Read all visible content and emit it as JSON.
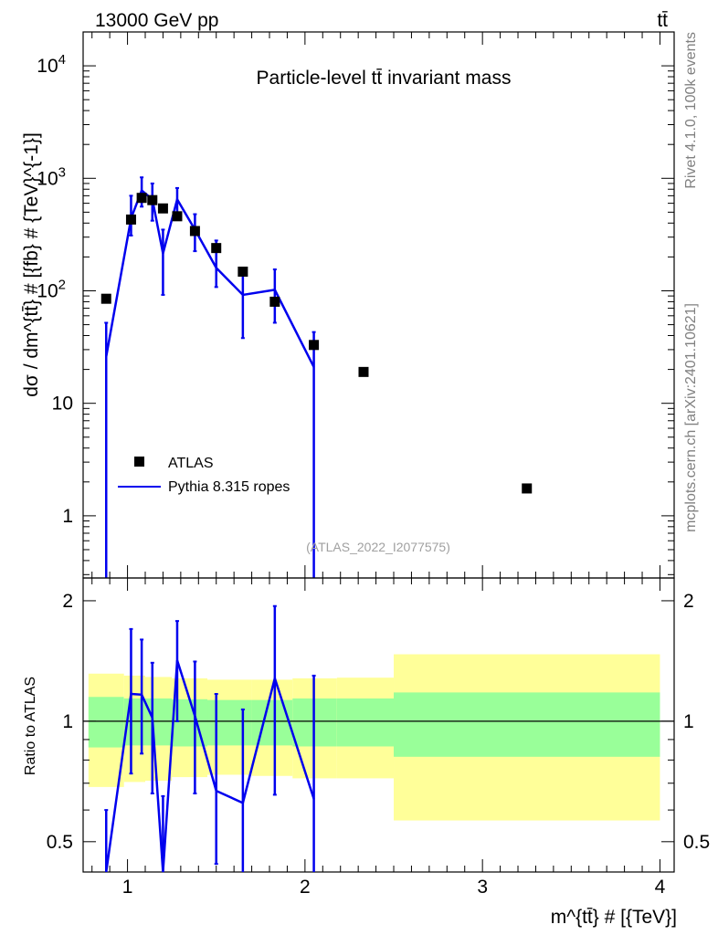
{
  "header": {
    "energy_label": "13000 GeV pp",
    "process_label": "tt̄"
  },
  "side_text": {
    "rivet": "Rivet 4.1.0,  100k events",
    "mcplots": "mcplots.cern.ch [arXiv:2401.10621]"
  },
  "chart_data": [
    {
      "type": "scatter",
      "panel": "main",
      "title": "Particle-level tt̄ invariant mass",
      "analysis_id": "(ATLAS_2022_I2077575)",
      "xlabel": "m^{tt̄} # [{TeV}]",
      "ylabel": "dσ / dm^{tt̄} # [{fb} # {TeV}^{-1}]",
      "yscale": "log",
      "xlim": [
        0.75,
        4.08
      ],
      "ylim": [
        0.28,
        20000
      ],
      "ytick_labels": [
        {
          "v": 1,
          "t": "1"
        },
        {
          "v": 10,
          "t": "10"
        },
        {
          "v": 100,
          "t": "10",
          "sup": "2"
        },
        {
          "v": 1000,
          "t": "10",
          "sup": "3"
        },
        {
          "v": 10000,
          "t": "10",
          "sup": "4"
        }
      ],
      "legend": [
        {
          "label": "ATLAS",
          "marker": "square",
          "color": "#000000"
        },
        {
          "label": "Pythia 8.315 ropes",
          "marker": "line",
          "color": "#0000ee"
        }
      ],
      "series": [
        {
          "name": "ATLAS",
          "color": "#000000",
          "points": [
            {
              "x": 0.88,
              "y": 85
            },
            {
              "x": 1.02,
              "y": 430
            },
            {
              "x": 1.08,
              "y": 670
            },
            {
              "x": 1.14,
              "y": 640
            },
            {
              "x": 1.2,
              "y": 540
            },
            {
              "x": 1.28,
              "y": 460
            },
            {
              "x": 1.38,
              "y": 340
            },
            {
              "x": 1.5,
              "y": 240
            },
            {
              "x": 1.65,
              "y": 148
            },
            {
              "x": 1.83,
              "y": 80
            },
            {
              "x": 2.05,
              "y": 33
            },
            {
              "x": 2.33,
              "y": 19
            },
            {
              "x": 3.25,
              "y": 1.75
            }
          ]
        },
        {
          "name": "Pythia 8.315 ropes",
          "color": "#0000ee",
          "points": [
            {
              "x": 0.88,
              "y": 26,
              "lo": 0.2,
              "hi": 52
            },
            {
              "x": 1.02,
              "y": 440,
              "lo": 310,
              "hi": 700
            },
            {
              "x": 1.08,
              "y": 780,
              "lo": 560,
              "hi": 1020
            },
            {
              "x": 1.14,
              "y": 650,
              "lo": 420,
              "hi": 900
            },
            {
              "x": 1.2,
              "y": 215,
              "lo": 92,
              "hi": 350
            },
            {
              "x": 1.28,
              "y": 650,
              "lo": 460,
              "hi": 820
            },
            {
              "x": 1.38,
              "y": 350,
              "lo": 225,
              "hi": 480
            },
            {
              "x": 1.5,
              "y": 160,
              "lo": 108,
              "hi": 280
            },
            {
              "x": 1.65,
              "y": 92,
              "lo": 38,
              "hi": 158
            },
            {
              "x": 1.83,
              "y": 102,
              "lo": 52,
              "hi": 155
            },
            {
              "x": 2.05,
              "y": 21,
              "lo": 0.2,
              "hi": 43
            }
          ]
        }
      ]
    },
    {
      "type": "line",
      "panel": "ratio",
      "ylabel": "Ratio to ATLAS",
      "xlabel": "m^{tt̄} # [{TeV}]",
      "xlim": [
        0.75,
        4.08
      ],
      "ylim": [
        0.42,
        2.28
      ],
      "yscale": "log",
      "ytick_labels": [
        {
          "v": 0.5,
          "t": "0.5"
        },
        {
          "v": 1,
          "t": "1"
        },
        {
          "v": 2,
          "t": "2"
        }
      ],
      "xtick_labels": [
        {
          "v": 1,
          "t": "1"
        },
        {
          "v": 2,
          "t": "2"
        },
        {
          "v": 3,
          "t": "3"
        },
        {
          "v": 4,
          "t": "4"
        }
      ],
      "bands": [
        {
          "x0": 0.78,
          "x1": 0.98,
          "inner": [
            0.86,
            1.15
          ],
          "outer": [
            0.685,
            1.315
          ]
        },
        {
          "x0": 0.98,
          "x1": 1.1,
          "inner": [
            0.87,
            1.14
          ],
          "outer": [
            0.705,
            1.3
          ]
        },
        {
          "x0": 1.1,
          "x1": 1.25,
          "inner": [
            0.87,
            1.14
          ],
          "outer": [
            0.71,
            1.29
          ]
        },
        {
          "x0": 1.25,
          "x1": 1.45,
          "inner": [
            0.865,
            1.135
          ],
          "outer": [
            0.725,
            1.28
          ]
        },
        {
          "x0": 1.45,
          "x1": 1.7,
          "inner": [
            0.87,
            1.13
          ],
          "outer": [
            0.735,
            1.27
          ]
        },
        {
          "x0": 1.7,
          "x1": 1.93,
          "inner": [
            0.87,
            1.13
          ],
          "outer": [
            0.73,
            1.27
          ]
        },
        {
          "x0": 1.93,
          "x1": 2.18,
          "inner": [
            0.865,
            1.14
          ],
          "outer": [
            0.72,
            1.28
          ]
        },
        {
          "x0": 2.18,
          "x1": 2.5,
          "inner": [
            0.865,
            1.14
          ],
          "outer": [
            0.72,
            1.285
          ]
        },
        {
          "x0": 2.5,
          "x1": 4.0,
          "inner": [
            0.815,
            1.18
          ],
          "outer": [
            0.565,
            1.47
          ]
        }
      ],
      "series": [
        {
          "name": "Pythia 8.315 ropes",
          "color": "#0000ee",
          "points": [
            {
              "x": 0.88,
              "y": 0.3,
              "lo": 0.3,
              "hi": 0.6
            },
            {
              "x": 1.02,
              "y": 1.17,
              "lo": 0.74,
              "hi": 1.7
            },
            {
              "x": 1.08,
              "y": 1.165,
              "lo": 0.83,
              "hi": 1.6
            },
            {
              "x": 1.14,
              "y": 1.02,
              "lo": 0.66,
              "hi": 1.4
            },
            {
              "x": 1.2,
              "y": 0.4,
              "lo": 0.4,
              "hi": 0.65
            },
            {
              "x": 1.28,
              "y": 1.42,
              "lo": 1.0,
              "hi": 1.78
            },
            {
              "x": 1.38,
              "y": 1.03,
              "lo": 0.66,
              "hi": 1.41
            },
            {
              "x": 1.5,
              "y": 0.67,
              "lo": 0.44,
              "hi": 1.17
            },
            {
              "x": 1.65,
              "y": 0.625,
              "lo": 0.26,
              "hi": 1.07
            },
            {
              "x": 1.83,
              "y": 1.28,
              "lo": 0.655,
              "hi": 1.94
            },
            {
              "x": 2.05,
              "y": 0.64,
              "lo": 0.3,
              "hi": 1.3
            }
          ]
        }
      ]
    }
  ]
}
